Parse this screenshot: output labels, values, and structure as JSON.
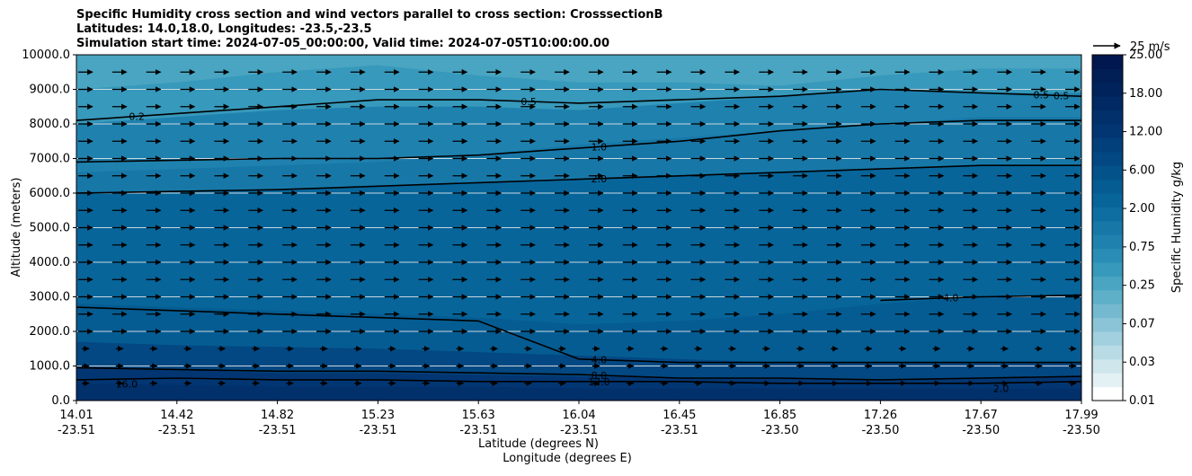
{
  "chart_data": {
    "type": "contour",
    "title_lines": [
      "Specific Humidity cross section and wind vectors parallel to cross section: CrosssectionB",
      "Latitudes: 14.0,18.0, Longitudes: -23.5,-23.5",
      "Simulation start time: 2024-07-05_00:00:00, Valid time: 2024-07-05T10:00:00.00"
    ],
    "ylabel": "Altitude (meters)",
    "xlabel_lat": "Latitude (degrees N)",
    "xlabel_lon": "Longitude (degrees E)",
    "ylim": [
      0,
      10000
    ],
    "yticks": [
      "0.0",
      "1000.0",
      "2000.0",
      "3000.0",
      "4000.0",
      "5000.0",
      "6000.0",
      "7000.0",
      "8000.0",
      "9000.0",
      "10000.0"
    ],
    "xticks": [
      {
        "lat": "14.01",
        "lon": "-23.51"
      },
      {
        "lat": "14.42",
        "lon": "-23.51"
      },
      {
        "lat": "14.82",
        "lon": "-23.51"
      },
      {
        "lat": "15.23",
        "lon": "-23.51"
      },
      {
        "lat": "15.63",
        "lon": "-23.51"
      },
      {
        "lat": "16.04",
        "lon": "-23.51"
      },
      {
        "lat": "16.45",
        "lon": "-23.51"
      },
      {
        "lat": "16.85",
        "lon": "-23.50"
      },
      {
        "lat": "17.26",
        "lon": "-23.50"
      },
      {
        "lat": "17.67",
        "lon": "-23.50"
      },
      {
        "lat": "17.99",
        "lon": "-23.50"
      }
    ],
    "colorbar": {
      "label": "Specific Humidity g/kg",
      "tick_labels": [
        "0.01",
        "0.03",
        "0.07",
        "0.25",
        "0.75",
        "2.00",
        "6.00",
        "12.00",
        "18.00",
        "25.00"
      ],
      "colors": [
        "#ffffff",
        "#e4f1f4",
        "#cfe6ec",
        "#b8dbe5",
        "#a2d0de",
        "#8bc4d6",
        "#74b9cf",
        "#5eafc8",
        "#49a5c1",
        "#3799bb",
        "#2a8db5",
        "#1f81ae",
        "#1778a8",
        "#0e6ea1",
        "#07659a",
        "#055c92",
        "#04528a",
        "#034882",
        "#02407b",
        "#023673",
        "#01306b",
        "#012a64",
        "#01235c",
        "#011e55",
        "#01184e"
      ]
    },
    "contour_labels": [
      "0.2",
      "0.5",
      "0.5",
      "0.5",
      "1.0",
      "2.0",
      "4.0",
      "4.0",
      "8.0",
      "12.0",
      "16.0",
      "2.0"
    ],
    "wind_vector_key": "25 m/s",
    "bands": [
      {
        "q": 0.4,
        "z": [
          9000,
          9200,
          9500,
          9700,
          9400,
          9200,
          9200,
          9100,
          9400,
          9600,
          9600
        ]
      },
      {
        "q": 0.75,
        "z": [
          8000,
          8200,
          8400,
          8500,
          8500,
          8400,
          8600,
          8800,
          9000,
          8900,
          8900
        ]
      },
      {
        "q": 1.5,
        "z": [
          6600,
          6700,
          6800,
          6900,
          7100,
          7400,
          7600,
          7800,
          8000,
          8200,
          8200
        ]
      },
      {
        "q": 3.0,
        "z": [
          6000,
          6050,
          6100,
          6200,
          6300,
          6400,
          6500,
          6600,
          6700,
          6800,
          6800
        ]
      },
      {
        "q": 5.0,
        "z": [
          2800,
          2700,
          2600,
          2500,
          2400,
          2200,
          2300,
          2500,
          2800,
          3000,
          3000
        ]
      },
      {
        "q": 8.0,
        "z": [
          1700,
          1600,
          1550,
          1500,
          1400,
          1300,
          1200,
          1100,
          1100,
          1100,
          1100
        ]
      },
      {
        "q": 12.0,
        "z": [
          950,
          900,
          800,
          800,
          750,
          700,
          650,
          650,
          600,
          650,
          700
        ]
      },
      {
        "q": 16.0,
        "z": [
          500,
          450,
          400,
          400,
          400,
          350,
          350,
          350,
          350,
          350,
          350
        ]
      }
    ],
    "contours": [
      {
        "level": 0.5,
        "z": [
          8100,
          8300,
          8500,
          8700,
          8700,
          8600,
          8700,
          8800,
          9000,
          8900,
          8800
        ]
      },
      {
        "level": 1.0,
        "z": [
          6900,
          6950,
          7000,
          7000,
          7100,
          7300,
          7500,
          7800,
          8000,
          8100,
          8100
        ]
      },
      {
        "level": 2.0,
        "z": [
          6000,
          6050,
          6100,
          6200,
          6300,
          6400,
          6500,
          6600,
          6700,
          6800,
          6800
        ]
      },
      {
        "level": 4.0,
        "z": [
          2700,
          2600,
          2500,
          2400,
          2300,
          1200,
          1100,
          1100,
          1100,
          1100,
          1100
        ]
      },
      {
        "level": 8.0,
        "z": [
          950,
          900,
          850,
          850,
          800,
          750,
          650,
          650,
          600,
          650,
          700
        ]
      },
      {
        "level": 12.0,
        "z": [
          600,
          650,
          600,
          600,
          550,
          550,
          550,
          500,
          500,
          500,
          550
        ]
      },
      {
        "level": 4.0,
        "z": [
          null,
          null,
          null,
          null,
          null,
          null,
          null,
          null,
          2900,
          3000,
          3050
        ]
      }
    ]
  }
}
